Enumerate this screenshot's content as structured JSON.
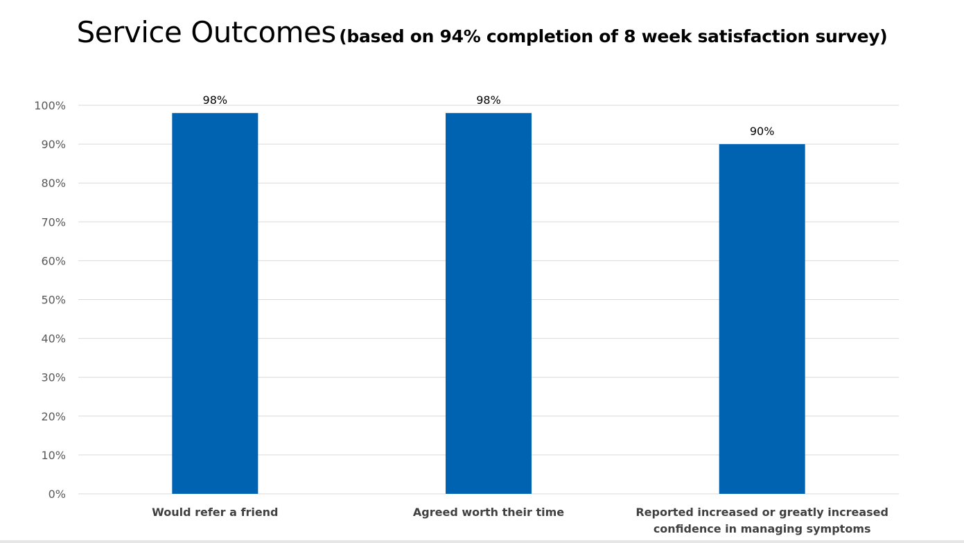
{
  "title": {
    "main": "Service Outcomes",
    "sub": "(based on 94% completion of 8 week satisfaction survey)"
  },
  "colors": {
    "bar": "#0063b2",
    "grid": "#d9d9d9",
    "tick_text": "#595959",
    "category_text": "#404040"
  },
  "chart_data": {
    "type": "bar",
    "title": "Service Outcomes (based on 94% completion of 8 week satisfaction survey)",
    "categories": [
      [
        "Would refer a friend"
      ],
      [
        "Agreed worth their time"
      ],
      [
        "Reported increased or greatly increased",
        "confidence in managing symptoms"
      ]
    ],
    "values": [
      98,
      98,
      90
    ],
    "data_labels": [
      "98%",
      "98%",
      "90%"
    ],
    "xlabel": "",
    "ylabel": "",
    "ylim": [
      0,
      100
    ],
    "y_ticks": [
      0,
      10,
      20,
      30,
      40,
      50,
      60,
      70,
      80,
      90,
      100
    ],
    "y_tick_labels": [
      "0%",
      "10%",
      "20%",
      "30%",
      "40%",
      "50%",
      "60%",
      "70%",
      "80%",
      "90%",
      "100%"
    ],
    "grid": true,
    "legend": "none"
  }
}
